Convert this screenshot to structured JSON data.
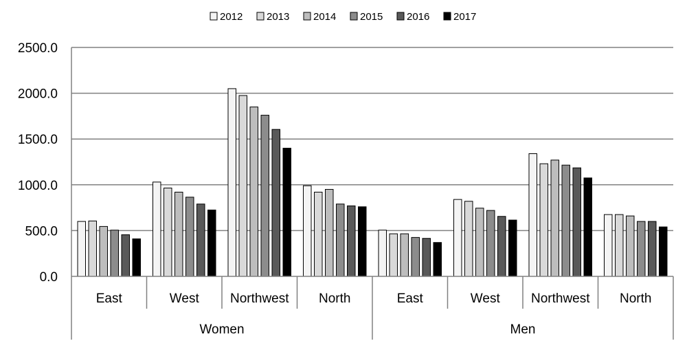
{
  "chart_data": {
    "type": "bar",
    "title": "",
    "xlabel": "",
    "ylabel": "",
    "ylim": [
      0,
      2500
    ],
    "yticks": [
      "0.0",
      "500.0",
      "1000.0",
      "1500.0",
      "2000.0",
      "2500.0"
    ],
    "grid": true,
    "legend_position": "top",
    "groups": [
      {
        "label": "Women",
        "categories": [
          "East",
          "West",
          "Northwest",
          "North"
        ]
      },
      {
        "label": "Men",
        "categories": [
          "East",
          "West",
          "Northwest",
          "North"
        ]
      }
    ],
    "categories": [
      "Women East",
      "Women West",
      "Women Northwest",
      "Women North",
      "Men East",
      "Men West",
      "Men Northwest",
      "Men North"
    ],
    "series": [
      {
        "name": "2012",
        "color": "#f4f4f4",
        "values": [
          600,
          1030,
          2050,
          990,
          505,
          840,
          1340,
          675
        ]
      },
      {
        "name": "2013",
        "color": "#d9d9d9",
        "values": [
          605,
          965,
          1975,
          920,
          465,
          820,
          1230,
          675
        ]
      },
      {
        "name": "2014",
        "color": "#bdbdbd",
        "values": [
          545,
          920,
          1850,
          950,
          465,
          745,
          1270,
          660
        ]
      },
      {
        "name": "2015",
        "color": "#8c8c8c",
        "values": [
          505,
          865,
          1760,
          790,
          425,
          720,
          1215,
          600
        ]
      },
      {
        "name": "2016",
        "color": "#595959",
        "values": [
          455,
          790,
          1605,
          770,
          415,
          655,
          1185,
          600
        ]
      },
      {
        "name": "2017",
        "color": "#000000",
        "values": [
          410,
          725,
          1400,
          760,
          370,
          615,
          1075,
          540
        ]
      }
    ]
  }
}
